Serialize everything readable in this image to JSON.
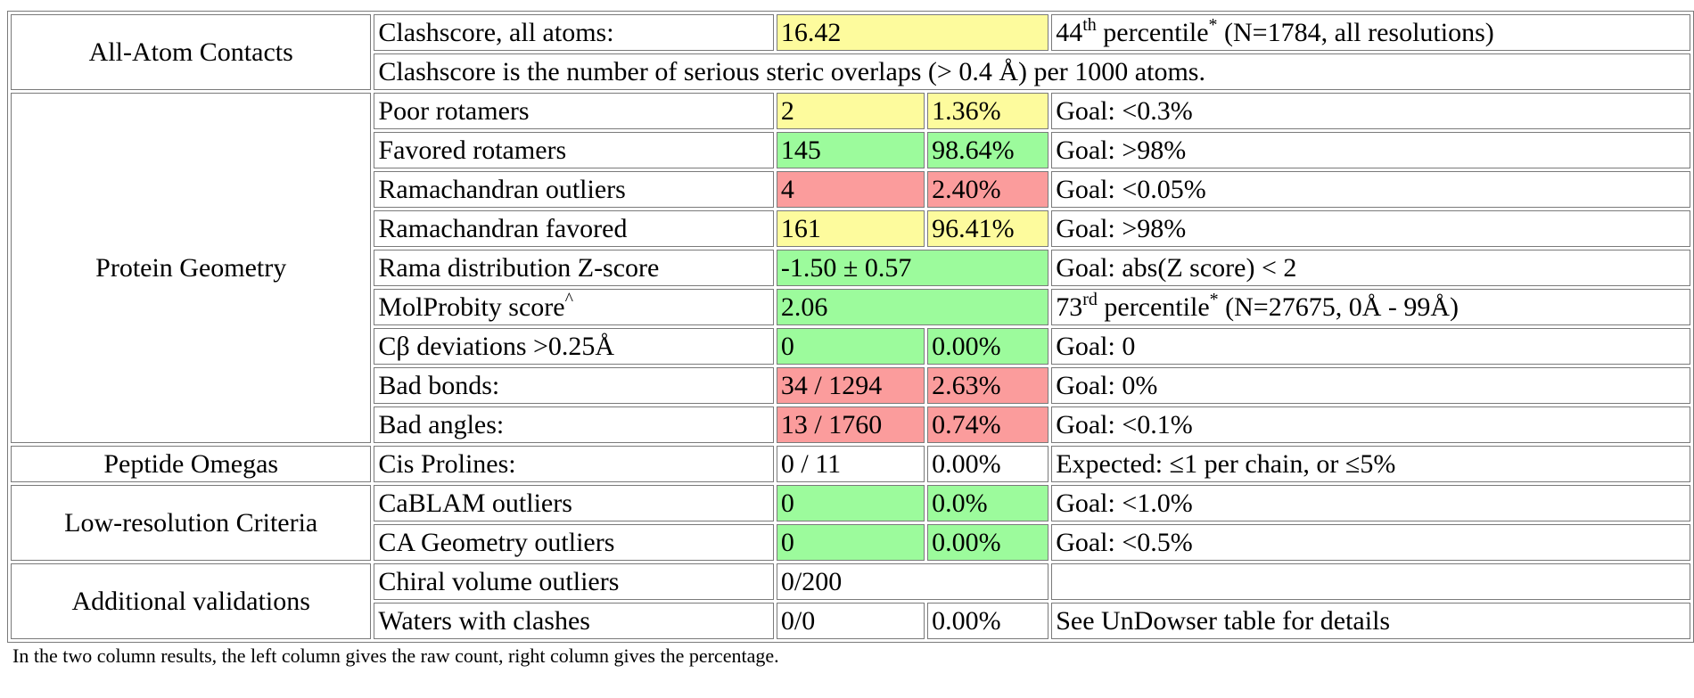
{
  "categories": {
    "all_atom": "All-Atom Contacts",
    "protein_geometry": "Protein Geometry",
    "peptide_omegas": "Peptide Omegas",
    "low_res": "Low-resolution Criteria",
    "additional": "Additional validations"
  },
  "rows": {
    "clashscore": {
      "label": "Clashscore, all atoms:",
      "value": "16.42",
      "rank": "44",
      "rank_suffix": "th",
      "percentile_word": " percentile",
      "asterisk": "*",
      "detail": " (N=1784, all resolutions)",
      "color": "#fdfb9d"
    },
    "clash_note": "Clashscore is the number of serious steric overlaps (> 0.4 Å) per 1000 atoms.",
    "poor_rotamers": {
      "label": "Poor rotamers",
      "count": "2",
      "percent": "1.36%",
      "goal": "Goal: <0.3%",
      "color": "#fdfb9d"
    },
    "favored_rotamers": {
      "label": "Favored rotamers",
      "count": "145",
      "percent": "98.64%",
      "goal": "Goal: >98%",
      "color": "#9cfb9c"
    },
    "rama_outliers": {
      "label": "Ramachandran outliers",
      "count": "4",
      "percent": "2.40%",
      "goal": "Goal: <0.05%",
      "color": "#fb9c9c"
    },
    "rama_favored": {
      "label": "Ramachandran favored",
      "count": "161",
      "percent": "96.41%",
      "goal": "Goal: >98%",
      "color": "#fdfb9d"
    },
    "rama_z": {
      "label": "Rama distribution Z-score",
      "value": "-1.50 ± 0.57",
      "goal": "Goal: abs(Z score) < 2",
      "color": "#9cfb9c"
    },
    "molprobity": {
      "label": "MolProbity score",
      "label_sup": "^",
      "value": "2.06",
      "rank": "73",
      "rank_suffix": "rd",
      "percentile_word": " percentile",
      "asterisk": "*",
      "detail": " (N=27675, 0Å - 99Å)",
      "color": "#9cfb9c"
    },
    "cbeta": {
      "label": "Cβ deviations >0.25Å",
      "count": "0",
      "percent": "0.00%",
      "goal": "Goal: 0",
      "color": "#9cfb9c"
    },
    "bad_bonds": {
      "label": "Bad bonds:",
      "count": "34 / 1294",
      "percent": "2.63%",
      "goal": "Goal: 0%",
      "color": "#fb9c9c"
    },
    "bad_angles": {
      "label": "Bad angles:",
      "count": "13 / 1760",
      "percent": "0.74%",
      "goal": "Goal: <0.1%",
      "color": "#fb9c9c"
    },
    "cis_prolines": {
      "label": "Cis Prolines:",
      "count": "0 / 11",
      "percent": "0.00%",
      "goal": "Expected: ≤1 per chain, or ≤5%"
    },
    "cablam": {
      "label": "CaBLAM outliers",
      "count": "0",
      "percent": "0.0%",
      "goal": "Goal: <1.0%",
      "color": "#9cfb9c"
    },
    "ca_geometry": {
      "label": "CA Geometry outliers",
      "count": "0",
      "percent": "0.00%",
      "goal": "Goal: <0.5%",
      "color": "#9cfb9c"
    },
    "chiral": {
      "label": "Chiral volume outliers",
      "value": "0/200",
      "goal": ""
    },
    "waters": {
      "label": "Waters with clashes",
      "count": "0/0",
      "percent": "0.00%",
      "goal": "See UnDowser table for details"
    }
  },
  "footnote": "In the two column results, the left column gives the raw count, right column gives the percentage."
}
